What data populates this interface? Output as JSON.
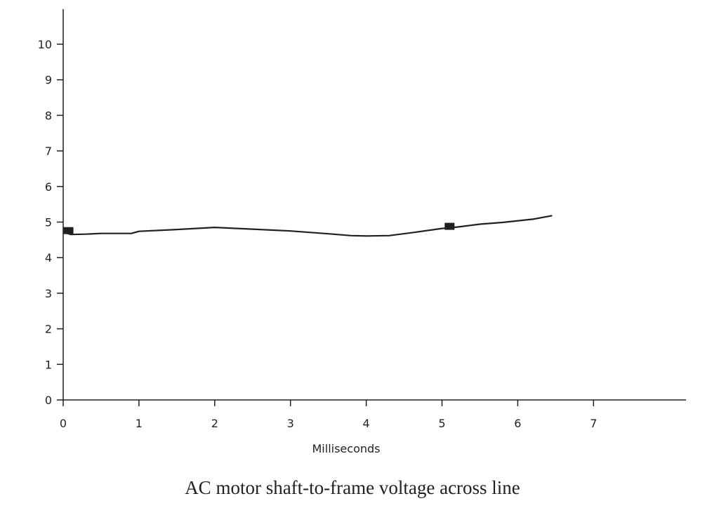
{
  "caption": "AC motor shaft-to-frame voltage across line",
  "colors": {
    "ink": "#231f20",
    "background": "#ffffff"
  },
  "chart_data": {
    "type": "line",
    "title": "",
    "xlabel": "Milliseconds",
    "ylabel": "",
    "xlim": [
      0,
      8.2
    ],
    "ylim": [
      0,
      11
    ],
    "x_ticks": [
      0,
      1,
      2,
      3,
      4,
      5,
      6,
      7
    ],
    "y_ticks": [
      0,
      1,
      2,
      3,
      4,
      5,
      6,
      7,
      8,
      9,
      10
    ],
    "grid": false,
    "legend": "none",
    "series": [
      {
        "x": [
          0.0,
          0.1,
          0.3,
          0.5,
          0.9,
          1.0,
          1.5,
          2.0,
          2.5,
          3.0,
          3.5,
          3.8,
          4.0,
          4.3,
          4.6,
          5.0,
          5.2,
          5.5,
          5.8,
          6.2,
          6.45
        ],
        "y": [
          4.72,
          4.65,
          4.66,
          4.68,
          4.68,
          4.74,
          4.79,
          4.85,
          4.8,
          4.75,
          4.67,
          4.62,
          4.61,
          4.62,
          4.7,
          4.82,
          4.86,
          4.94,
          4.99,
          5.08,
          5.18
        ]
      }
    ],
    "markers": [
      {
        "x": 0.07,
        "y": 4.76
      },
      {
        "x": 5.1,
        "y": 4.88
      }
    ]
  }
}
